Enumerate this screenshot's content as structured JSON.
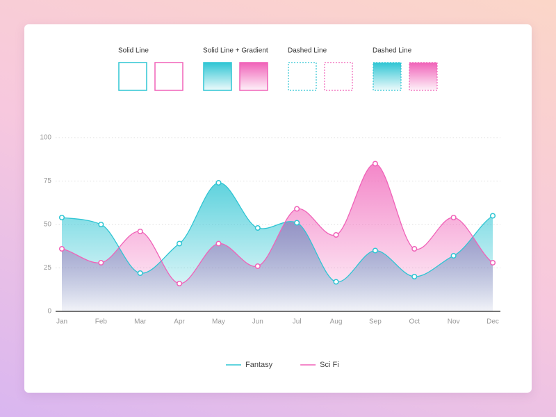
{
  "swatch_groups": [
    "Solid Line",
    "Solid Line + Gradient",
    "Dashed Line",
    "Dashed Line"
  ],
  "chart_data": {
    "type": "area",
    "categories": [
      "Jan",
      "Feb",
      "Mar",
      "Apr",
      "May",
      "Jun",
      "Jul",
      "Aug",
      "Sep",
      "Oct",
      "Nov",
      "Dec"
    ],
    "series": [
      {
        "name": "Fantasy",
        "color": "#2ec5d3",
        "values": [
          54,
          50,
          22,
          39,
          74,
          48,
          51,
          17,
          35,
          20,
          32,
          55
        ]
      },
      {
        "name": "Sci Fi",
        "color": "#f062b8",
        "values": [
          36,
          28,
          46,
          16,
          39,
          26,
          59,
          44,
          85,
          36,
          54,
          28
        ]
      }
    ],
    "ylim": [
      0,
      100
    ],
    "yticks": [
      0,
      25,
      50,
      75,
      100
    ],
    "grid": true,
    "legend": "bottom"
  }
}
